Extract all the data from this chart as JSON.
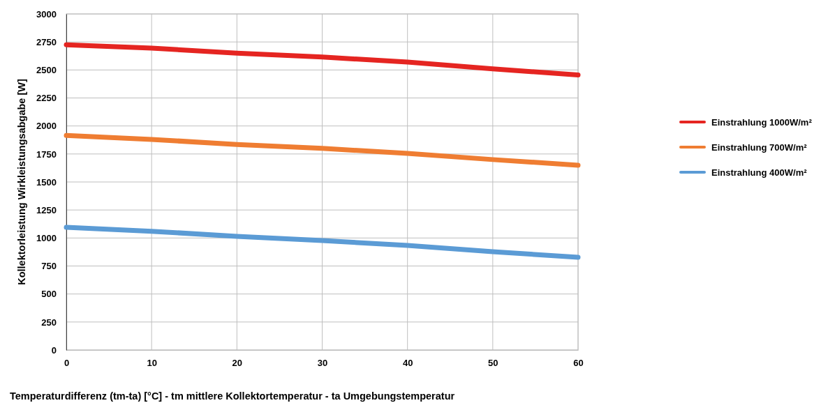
{
  "chart_data": {
    "type": "line",
    "xlabel": "Temperaturdifferenz (tm-ta) [°C]  - tm mittlere Kollektortemperatur  - ta Umgebungstemperatur",
    "ylabel": "Kollektorleistung Wirkleistungsabgabe [W]",
    "x": [
      0,
      10,
      20,
      30,
      40,
      50,
      60
    ],
    "series": [
      {
        "name": "Einstrahlung 1000W/m²",
        "color": "#e52521",
        "values": [
          2725,
          2695,
          2650,
          2615,
          2570,
          2510,
          2455
        ]
      },
      {
        "name": "Einstrahlung 700W/m²",
        "color": "#ef7d32",
        "values": [
          1915,
          1880,
          1835,
          1800,
          1755,
          1700,
          1650
        ]
      },
      {
        "name": "Einstrahlung 400W/m²",
        "color": "#5b9bd5",
        "values": [
          1095,
          1060,
          1015,
          977,
          933,
          877,
          828
        ]
      }
    ],
    "xlim": [
      0,
      60
    ],
    "xticks": [
      0,
      10,
      20,
      30,
      40,
      50,
      60
    ],
    "ylim": [
      0,
      3000
    ],
    "yticks": [
      0,
      250,
      500,
      750,
      1000,
      1250,
      1500,
      1750,
      2000,
      2250,
      2500,
      2750,
      3000
    ],
    "grid": true,
    "legend": "right",
    "marker": "none",
    "line_style": "solid"
  }
}
